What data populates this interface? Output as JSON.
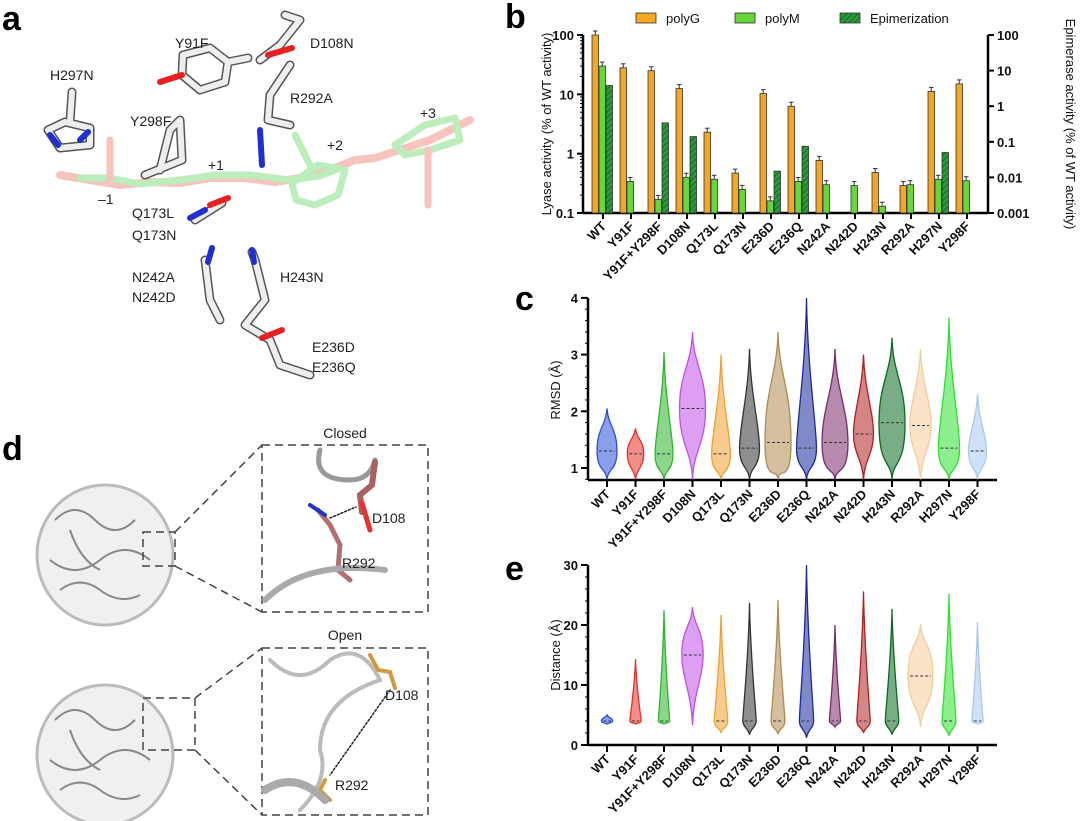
{
  "panel_letters": {
    "a": "a",
    "b": "b",
    "c": "c",
    "d": "d",
    "e": "e"
  },
  "panel_a": {
    "residue_labels": [
      "Y91F",
      "D108N",
      "H297N",
      "R292A",
      "Y298F",
      "Q173L",
      "Q173N",
      "N242A",
      "N242D",
      "H243N",
      "E236D",
      "E236Q"
    ],
    "subsite_labels": [
      "–1",
      "+1",
      "+2",
      "+3"
    ]
  },
  "panel_d": {
    "closed": {
      "title": "Closed",
      "labels": [
        "D108",
        "R292"
      ]
    },
    "open": {
      "title": "Open",
      "labels": [
        "D108",
        "R292"
      ]
    }
  },
  "colors": {
    "polyG": "#f5a623",
    "polyM": "#66d63a",
    "epimerization": "#2a9a3a",
    "violins": [
      "#2a4fd8",
      "#e8302a",
      "#2db52d",
      "#c050e8",
      "#f0a030",
      "#333333",
      "#b08a50",
      "#1a2a9a",
      "#7a2a6a",
      "#b02020",
      "#0a6a20",
      "#f5cc9a",
      "#30e030",
      "#a8c8f0"
    ]
  },
  "chart_data": [
    {
      "type": "bar",
      "categories": [
        "WT",
        "Y91F",
        "Y91F+Y298F",
        "D108N",
        "Q173L",
        "Q173N",
        "E236D",
        "E236Q",
        "N242A",
        "N242D",
        "H243N",
        "R292A",
        "H297N",
        "Y298F"
      ],
      "ylabel": "Lyase activity (% of WT activity)",
      "y2label": "Epimerase activity (% of WT activity)",
      "yscale": "log",
      "ylim": [
        0.1,
        100
      ],
      "yticks": [
        "0.1",
        "1",
        "10",
        "100"
      ],
      "y2scale": "log",
      "y2lim": [
        0.001,
        100
      ],
      "y2ticks": [
        "0.001",
        "0.01",
        "0.1",
        "1",
        "10",
        "100"
      ],
      "legend_position": "top",
      "series": [
        {
          "name": "polyG",
          "axis": "left",
          "values": [
            100,
            28,
            25,
            12.5,
            2.3,
            0.47,
            10.3,
            6.3,
            0.77,
            null,
            0.48,
            0.29,
            11.2,
            15
          ]
        },
        {
          "name": "polyM",
          "axis": "left",
          "values": [
            30,
            0.34,
            0.17,
            0.4,
            0.37,
            0.25,
            0.16,
            0.34,
            0.3,
            0.29,
            0.13,
            0.3,
            0.37,
            0.35
          ]
        },
        {
          "name": "Epimerization",
          "axis": "right",
          "values": [
            3.8,
            null,
            0.34,
            0.14,
            null,
            null,
            0.015,
            0.075,
            null,
            null,
            null,
            null,
            0.05,
            null
          ]
        }
      ]
    },
    {
      "type": "violin",
      "categories": [
        "WT",
        "Y91F",
        "Y91F+Y298F",
        "D108N",
        "Q173L",
        "Q173N",
        "E236D",
        "E236Q",
        "N242A",
        "N242D",
        "H243N",
        "R292A",
        "H297N",
        "Y298F"
      ],
      "ylabel": "RMSD (Å)",
      "ylim": [
        0.8,
        4
      ],
      "yticks": [
        "1",
        "2",
        "3",
        "4"
      ],
      "median": [
        1.3,
        1.25,
        1.25,
        2.05,
        1.25,
        1.35,
        1.45,
        1.35,
        1.45,
        1.6,
        1.8,
        1.75,
        1.35,
        1.3
      ],
      "q1": [
        1.2,
        1.17,
        1.15,
        1.83,
        1.13,
        1.25,
        1.27,
        1.25,
        1.25,
        1.5,
        1.5,
        1.62,
        1.22,
        1.2
      ],
      "q3": [
        1.45,
        1.33,
        1.35,
        2.25,
        1.35,
        1.5,
        1.85,
        1.5,
        1.65,
        1.75,
        2.0,
        1.9,
        1.5,
        1.4
      ],
      "min": [
        0.8,
        0.8,
        0.8,
        0.8,
        0.8,
        0.8,
        0.8,
        0.8,
        0.8,
        0.8,
        0.8,
        0.8,
        0.8,
        0.8
      ],
      "max": [
        2.05,
        1.7,
        3.05,
        3.4,
        3.0,
        3.1,
        3.4,
        4.0,
        3.1,
        3.0,
        3.3,
        3.1,
        3.65,
        2.3
      ]
    },
    {
      "type": "violin",
      "categories": [
        "WT",
        "Y91F",
        "Y91F+Y298F",
        "D108N",
        "Q173L",
        "Q173N",
        "E236D",
        "E236Q",
        "N242A",
        "N242D",
        "H243N",
        "R292A",
        "H297N",
        "Y298F"
      ],
      "ylabel": "Distance (Å)",
      "ylim": [
        0,
        30
      ],
      "yticks": [
        "0",
        "10",
        "20",
        "30"
      ],
      "median": [
        4,
        4,
        4,
        15,
        4,
        4,
        4,
        4,
        4,
        4,
        4,
        11.5,
        4,
        4
      ],
      "q1": [
        3.9,
        3.9,
        3.9,
        14,
        3.7,
        3.8,
        3.7,
        3.8,
        3.9,
        3.8,
        3.8,
        10,
        3.7,
        3.9
      ],
      "q3": [
        4.2,
        4.2,
        4.2,
        16.7,
        4.5,
        4.6,
        4.6,
        4.8,
        4.2,
        4.6,
        4.6,
        13.5,
        4.6,
        4.2
      ],
      "min": [
        3.5,
        3.5,
        3.5,
        3.3,
        2,
        1.7,
        1.8,
        1.2,
        3,
        2,
        1.7,
        3,
        1.5,
        3.5
      ],
      "max": [
        5,
        14.3,
        22.5,
        23,
        21.7,
        23.7,
        24.2,
        30,
        20,
        25.6,
        22.7,
        20.2,
        25.2,
        20.5
      ]
    }
  ]
}
